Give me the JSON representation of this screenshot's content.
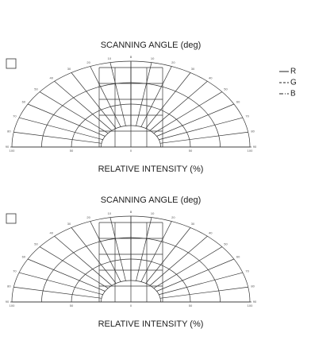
{
  "diagrams": [
    {
      "title": "SCANNING ANGLE (deg)",
      "xlabel": "RELATIVE INTENSITY (%)",
      "angles": [
        "0",
        "10",
        "20",
        "30",
        "40",
        "50",
        "60",
        "70",
        "80",
        "90"
      ],
      "intensity": [
        "100",
        "50",
        "0",
        "50",
        "100"
      ],
      "legend": [
        "R",
        "G",
        "B"
      ]
    },
    {
      "title": "SCANNING ANGLE (deg)",
      "xlabel": "RELATIVE INTENSITY (%)",
      "angles": [
        "0",
        "10",
        "20",
        "30",
        "40",
        "50",
        "60",
        "70",
        "80",
        "90"
      ],
      "intensity": [
        "100",
        "50",
        "0",
        "50",
        "100"
      ]
    }
  ]
}
